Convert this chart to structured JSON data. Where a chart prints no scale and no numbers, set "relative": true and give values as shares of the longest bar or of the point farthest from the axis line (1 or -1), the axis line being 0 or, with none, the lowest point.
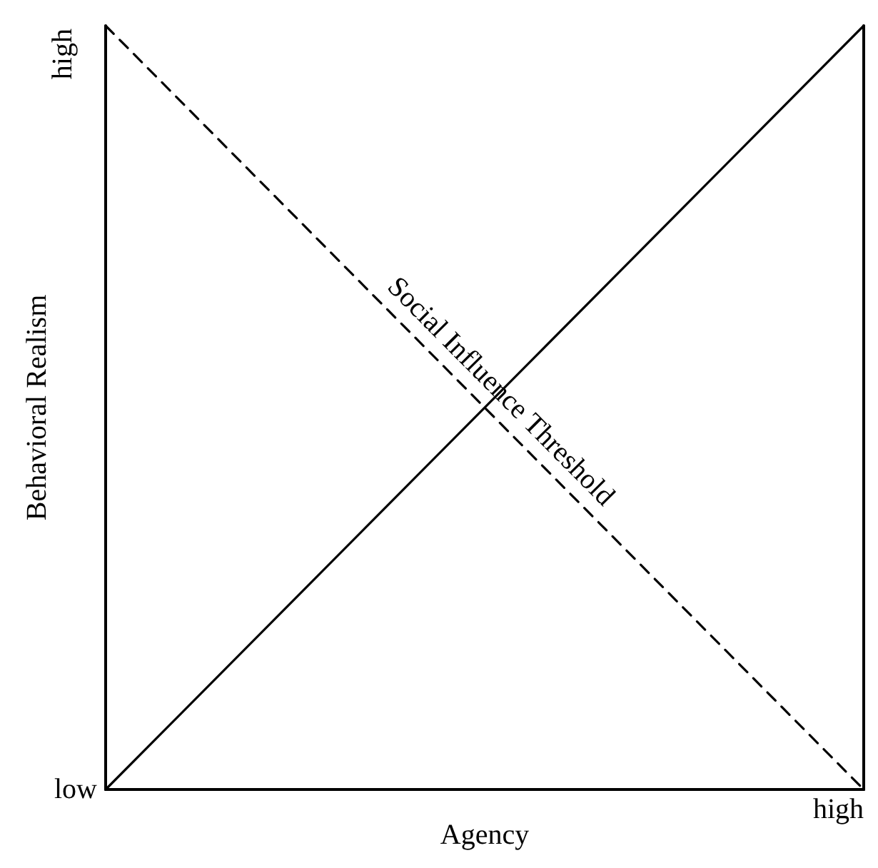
{
  "chart_data": {
    "type": "line",
    "relative": true,
    "xlabel": "Agency",
    "ylabel": "Behavioral Realism",
    "categories": [
      null,
      null
    ],
    "series": [
      {
        "color": "#000000",
        "values": [
          0,
          1
        ],
        "line_style": "solid"
      },
      {
        "name": "Social Influence Threshold",
        "color": "#000000",
        "values": [
          1,
          0
        ],
        "line_style": "dashed"
      }
    ],
    "annotations": [
      "low",
      "high",
      "high"
    ],
    "grid": false,
    "legend": false,
    "marker": "none"
  }
}
